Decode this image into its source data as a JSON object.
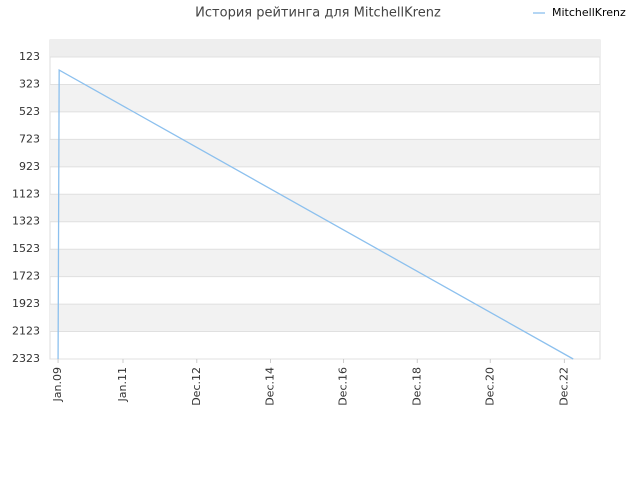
{
  "chart_data": {
    "type": "line",
    "title": "История рейтинга для MitchellKrenz",
    "series": [
      {
        "name": "MitchellKrenz",
        "color": "#8cc0ee",
        "x": [
          2009.1,
          2009.13,
          2023.14
        ],
        "values": [
          2323,
          218,
          2323
        ]
      }
    ],
    "xlim": [
      2008.88,
      2023.87
    ],
    "xticks": [
      {
        "value": 2009.1,
        "label": "Jan.09"
      },
      {
        "value": 2010.87,
        "label": "Jan.11"
      },
      {
        "value": 2012.88,
        "label": "Dec.12"
      },
      {
        "value": 2014.89,
        "label": "Dec.14"
      },
      {
        "value": 2016.88,
        "label": "Dec.16"
      },
      {
        "value": 2018.89,
        "label": "Dec.18"
      },
      {
        "value": 2020.88,
        "label": "Dec.20"
      },
      {
        "value": 2022.9,
        "label": "Dec.22"
      }
    ],
    "ylim": [
      -1,
      2323
    ],
    "y_reversed": true,
    "yticks": [
      123,
      323,
      523,
      723,
      923,
      1123,
      1323,
      1523,
      1723,
      1923,
      2123,
      2323
    ],
    "bands": true,
    "legend": "top-right"
  }
}
